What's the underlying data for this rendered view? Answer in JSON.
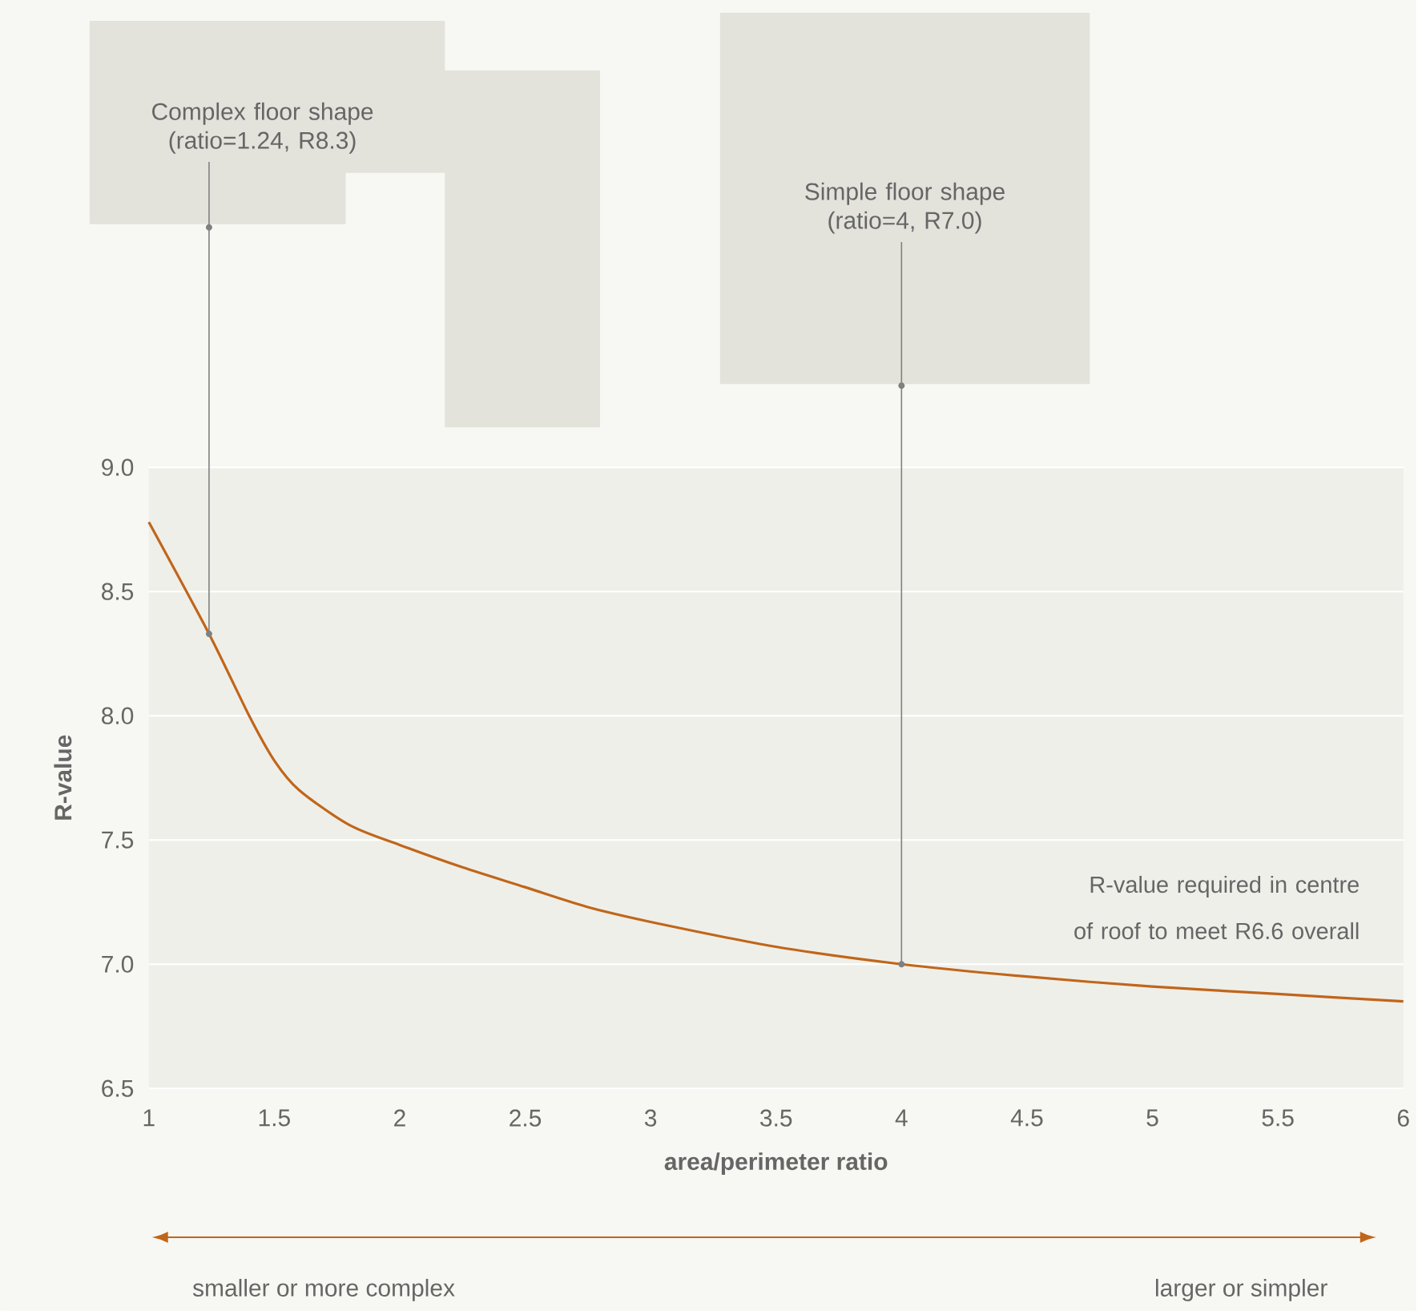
{
  "chart_data": {
    "type": "line",
    "xlabel": "area/perimeter ratio",
    "ylabel": "R-value",
    "x": [
      1,
      1.24,
      1.4,
      1.5,
      1.6,
      1.8,
      2,
      2.25,
      2.5,
      2.75,
      3,
      3.5,
      4,
      4.5,
      5,
      5.5,
      6
    ],
    "series": [
      {
        "color": "#c0661a",
        "values": [
          8.78,
          8.33,
          8.0,
          7.82,
          7.7,
          7.56,
          7.48,
          7.39,
          7.31,
          7.23,
          7.17,
          7.07,
          7.0,
          6.95,
          6.91,
          6.88,
          6.85
        ]
      }
    ],
    "xlim": [
      1,
      6
    ],
    "ylim": [
      6.5,
      9
    ],
    "xticks": [
      1,
      1.5,
      2,
      2.5,
      3,
      3.5,
      4,
      4.5,
      5,
      5.5,
      6
    ],
    "yticks": [
      6.5,
      {
        "value": 7,
        "label": "7.0"
      },
      7.5,
      {
        "value": 8,
        "label": "8.0"
      },
      8.5,
      {
        "value": 9,
        "label": "9.0"
      }
    ],
    "grid": "y",
    "marker": "none",
    "line_style": "solid",
    "annotations": [
      {
        "text": "Complex floor shape (ratio=1.24, R8.3)",
        "x": 1.24,
        "y": 8.33
      },
      {
        "text": "Simple floor shape (ratio=4, R7.0)",
        "x": 4,
        "y": 7.0
      },
      "R-value required in centre of roof to meet R6.6 overall",
      "smaller or more complex",
      "larger or simpler"
    ]
  }
}
